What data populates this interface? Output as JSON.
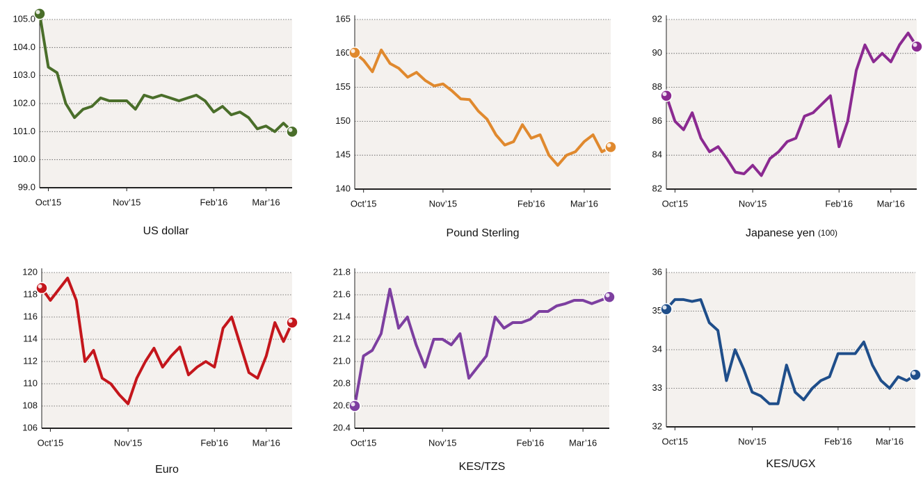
{
  "chart_data": [
    {
      "type": "line",
      "title": "US dollar",
      "categories": [
        null,
        "Oct’15",
        null,
        null,
        null,
        null,
        null,
        null,
        null,
        null,
        "Nov’15",
        null,
        null,
        null,
        null,
        null,
        null,
        null,
        null,
        null,
        "Feb’16",
        null,
        null,
        null,
        null,
        null,
        "Mar’16",
        null,
        null,
        null
      ],
      "series": [
        {
          "color": "#4a6e2a",
          "values": [
            105.2,
            103.3,
            103.1,
            102.0,
            101.5,
            101.8,
            101.9,
            102.2,
            102.1,
            102.1,
            102.1,
            101.8,
            102.3,
            102.2,
            102.3,
            102.2,
            102.1,
            102.2,
            102.3,
            102.1,
            101.7,
            101.9,
            101.6,
            101.7,
            101.5,
            101.1,
            101.2,
            101.0,
            101.3,
            101.0
          ]
        }
      ],
      "ylim": [
        99,
        105
      ],
      "yticks": [
        {
          "value": 99,
          "label": "99.0"
        },
        {
          "value": 100,
          "label": "100.0"
        },
        {
          "value": 101,
          "label": "101.0"
        },
        {
          "value": 102,
          "label": "102.0"
        },
        {
          "value": 103,
          "label": "103.0"
        },
        {
          "value": 104,
          "label": "104.0"
        },
        {
          "value": 105,
          "label": "105.0"
        }
      ],
      "grid": true
    },
    {
      "type": "line",
      "title": "Pound Sterling",
      "categories": [
        null,
        "Oct’15",
        null,
        null,
        null,
        null,
        null,
        null,
        null,
        null,
        "Nov’15",
        null,
        null,
        null,
        null,
        null,
        null,
        null,
        null,
        null,
        "Feb’16",
        null,
        null,
        null,
        null,
        null,
        "Mar’16",
        null,
        null,
        null
      ],
      "series": [
        {
          "color": "#e0892e",
          "values": [
            160.1,
            159.0,
            157.3,
            160.5,
            158.5,
            157.8,
            156.5,
            157.2,
            156.0,
            155.2,
            155.5,
            154.5,
            153.3,
            153.2,
            151.5,
            150.3,
            148.0,
            146.5,
            147.0,
            149.5,
            147.5,
            148.0,
            145.0,
            143.5,
            145.0,
            145.5,
            147.0,
            148.0,
            145.5,
            146.2
          ]
        }
      ],
      "ylim": [
        140,
        165
      ],
      "yticks": [
        140,
        145,
        150,
        155,
        160,
        165
      ],
      "grid": true
    },
    {
      "type": "line",
      "title": "Japanese yen",
      "note": "(100)",
      "categories": [
        null,
        "Oct’15",
        null,
        null,
        null,
        null,
        null,
        null,
        null,
        null,
        "Nov’15",
        null,
        null,
        null,
        null,
        null,
        null,
        null,
        null,
        null,
        "Feb’16",
        null,
        null,
        null,
        null,
        null,
        "Mar’16",
        null,
        null,
        null
      ],
      "series": [
        {
          "color": "#8b2a91",
          "values": [
            87.5,
            86.0,
            85.5,
            86.5,
            85.0,
            84.2,
            84.5,
            83.8,
            83.0,
            82.9,
            83.4,
            82.8,
            83.8,
            84.2,
            84.8,
            85.0,
            86.3,
            86.5,
            87.0,
            87.5,
            84.5,
            86.0,
            89.0,
            90.5,
            89.5,
            90.0,
            89.5,
            90.5,
            91.2,
            90.4
          ]
        }
      ],
      "ylim": [
        82,
        92
      ],
      "yticks": [
        82,
        84,
        86,
        88,
        90,
        92
      ],
      "grid": true
    },
    {
      "type": "line",
      "title": "Euro",
      "categories": [
        null,
        "Oct’15",
        null,
        null,
        null,
        null,
        null,
        null,
        null,
        null,
        "Nov’15",
        null,
        null,
        null,
        null,
        null,
        null,
        null,
        null,
        null,
        "Feb’16",
        null,
        null,
        null,
        null,
        null,
        "Mar’16",
        null,
        null,
        null
      ],
      "series": [
        {
          "color": "#c4161c",
          "values": [
            118.6,
            117.5,
            118.5,
            119.5,
            117.5,
            112.0,
            113.0,
            110.5,
            110.0,
            109.0,
            108.2,
            110.5,
            112.0,
            113.2,
            111.5,
            112.5,
            113.3,
            110.8,
            111.5,
            112.0,
            111.5,
            115.0,
            116.0,
            113.5,
            111.0,
            110.5,
            112.5,
            115.5,
            113.8,
            115.5
          ]
        }
      ],
      "ylim": [
        106,
        120
      ],
      "yticks": [
        106,
        108,
        110,
        112,
        114,
        116,
        118,
        120
      ],
      "grid": true
    },
    {
      "type": "line",
      "title": "KES/TZS",
      "categories": [
        null,
        "Oct’15",
        null,
        null,
        null,
        null,
        null,
        null,
        null,
        null,
        "Nov’15",
        null,
        null,
        null,
        null,
        null,
        null,
        null,
        null,
        null,
        "Feb’16",
        null,
        null,
        null,
        null,
        null,
        "Mar’16",
        null,
        null,
        null
      ],
      "series": [
        {
          "color": "#7d3fa0",
          "values": [
            20.6,
            21.05,
            21.1,
            21.25,
            21.65,
            21.3,
            21.4,
            21.15,
            20.95,
            21.2,
            21.2,
            21.15,
            21.25,
            20.85,
            20.95,
            21.05,
            21.4,
            21.3,
            21.35,
            21.35,
            21.38,
            21.45,
            21.45,
            21.5,
            21.52,
            21.55,
            21.55,
            21.52,
            21.55,
            21.58
          ]
        }
      ],
      "ylim": [
        20.4,
        21.8
      ],
      "yticks": [
        20.4,
        20.6,
        20.8,
        {
          "value": 21,
          "label": "21.0"
        },
        21.2,
        21.4,
        21.6,
        21.8
      ],
      "grid": true
    },
    {
      "type": "line",
      "title": "KES/UGX",
      "categories": [
        null,
        "Oct’15",
        null,
        null,
        null,
        null,
        null,
        null,
        null,
        null,
        "Nov’15",
        null,
        null,
        null,
        null,
        null,
        null,
        null,
        null,
        null,
        "Feb’16",
        null,
        null,
        null,
        null,
        null,
        "Mar’16",
        null,
        null,
        null
      ],
      "series": [
        {
          "color": "#1f4e8a",
          "values": [
            35.05,
            35.3,
            35.3,
            35.25,
            35.3,
            34.7,
            34.5,
            33.2,
            34.0,
            33.5,
            32.9,
            32.8,
            32.6,
            32.6,
            33.6,
            32.9,
            32.7,
            33.0,
            33.2,
            33.3,
            33.9,
            33.9,
            33.9,
            34.2,
            33.6,
            33.2,
            33.0,
            33.3,
            33.2,
            33.35
          ]
        }
      ],
      "ylim": [
        32,
        36
      ],
      "yticks": [
        32,
        33,
        34,
        35,
        36
      ],
      "grid": true
    }
  ]
}
